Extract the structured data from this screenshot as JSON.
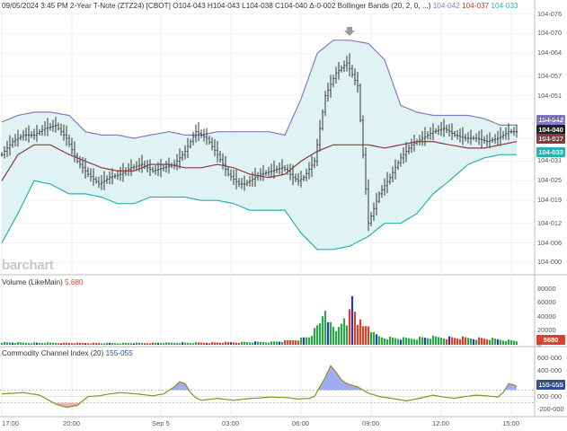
{
  "header": {
    "main_text": "09/05/2024 3:45 PM 2-Year T-Note (ZTZ24) [CBOT] O104-043 H104-043 L104-038 C104-040 Δ-0-002 Bollinger Bands (20, 2, 0, ...)",
    "bb_upper": "104-042",
    "bb_middle": "104-037",
    "bb_lower": "104-033",
    "volume_text": "Volume (LikeMain)",
    "volume_value": "5,680",
    "cci_text": "Commodity Channel Index (20)",
    "cci_value": "155-055"
  },
  "watermark": "barchart",
  "colors": {
    "bb_upper": "#8878c8",
    "bb_middle": "#8b3a3a",
    "bb_lower": "#2ab0b0",
    "bb_fill": "#dff3f3",
    "price": "#222222",
    "vol_up": "#2aa84a",
    "vol_down": "#e0402a",
    "vol_blue": "#2a3aa8",
    "cci_line": "#8f8f20",
    "cci_pos_fill": "#8e9ef0",
    "cci_neg_fill": "#f2a0a8",
    "tag_price": "#222222",
    "tag_cci": "#2a4ab0"
  },
  "marker_icon": "down-arrow-icon",
  "tags": {
    "price": "104-040",
    "cci": "155-055",
    "volume": "5680"
  },
  "chart_data": [
    {
      "type": "line",
      "title": "2-Year T-Note (ZTZ24) [CBOT] with Bollinger Bands (20, 2, 0)",
      "x_tick_labels": [
        "17:00",
        "20:00",
        "Sep 5",
        "03:00",
        "06:00",
        "09:00",
        "12:00",
        "15:00"
      ],
      "y_tick_labels": [
        "104-000",
        "104-006",
        "104-012",
        "104-019",
        "104-025",
        "104-031",
        "104-038",
        "104-044",
        "104-051",
        "104-057",
        "104-064",
        "104-070",
        "104-076"
      ],
      "y_range": [
        103.999,
        104.077
      ],
      "y_unit_note": "values in points (104-032 = 104.032)",
      "price_anchors_x_index": [
        0,
        4,
        8,
        12,
        16,
        20,
        24,
        28,
        32,
        36,
        40,
        44,
        48,
        52,
        56,
        60,
        64,
        68,
        72,
        76,
        80,
        84,
        88,
        90,
        92,
        96,
        100,
        104,
        106,
        108,
        110,
        112,
        116,
        120,
        124,
        128,
        132,
        136,
        140,
        144,
        148,
        152,
        156,
        160,
        164,
        168,
        172,
        176,
        180,
        184,
        188,
        191
      ],
      "price_anchors": [
        104.033,
        104.037,
        104.039,
        104.039,
        104.041,
        104.042,
        104.038,
        104.031,
        104.027,
        104.024,
        104.026,
        104.027,
        104.029,
        104.03,
        104.028,
        104.029,
        104.03,
        104.034,
        104.04,
        104.038,
        104.033,
        104.027,
        104.024,
        104.024,
        104.025,
        104.027,
        104.028,
        104.029,
        104.028,
        104.026,
        104.025,
        104.026,
        104.031,
        104.051,
        104.058,
        104.061,
        104.054,
        104.012,
        104.021,
        104.026,
        104.032,
        104.036,
        104.038,
        104.04,
        104.041,
        104.039,
        104.038,
        104.038,
        104.037,
        104.038,
        104.04,
        104.04
      ],
      "bb_upper_anchors": [
        104.043,
        104.045,
        104.046,
        104.046,
        104.045,
        104.04,
        104.039,
        104.039,
        104.038,
        104.039,
        104.04,
        104.039,
        104.039,
        104.04,
        104.04,
        104.04,
        104.04,
        104.039,
        104.05,
        104.064,
        104.068,
        104.068,
        104.067,
        104.062,
        104.048,
        104.046,
        104.045,
        104.045,
        104.045,
        104.044,
        104.042,
        104.042
      ],
      "bb_middle_anchors": [
        104.025,
        104.033,
        104.036,
        104.036,
        104.033,
        104.031,
        104.029,
        104.028,
        104.028,
        104.03,
        104.03,
        104.029,
        104.029,
        104.03,
        104.029,
        104.027,
        104.026,
        104.027,
        104.031,
        104.034,
        104.036,
        104.036,
        104.036,
        104.035,
        104.036,
        104.037,
        104.037,
        104.036,
        104.035,
        104.035,
        104.036,
        104.037
      ],
      "bb_lower_anchors": [
        104.006,
        104.015,
        104.025,
        104.024,
        104.021,
        104.021,
        104.02,
        104.018,
        104.018,
        104.02,
        104.02,
        104.02,
        104.019,
        104.019,
        104.018,
        104.016,
        104.016,
        104.016,
        104.009,
        104.004,
        104.004,
        104.005,
        104.008,
        104.012,
        104.012,
        104.015,
        104.021,
        104.025,
        104.03,
        104.032,
        104.033,
        104.033
      ],
      "bb_last": {
        "upper": 104.042,
        "middle": 104.037,
        "lower": 104.033
      }
    },
    {
      "type": "bar",
      "title": "Volume (LikeMain)",
      "y_tick_labels": [
        "80000",
        "60000",
        "40000",
        "20000",
        "0"
      ],
      "y_range": [
        0,
        85000
      ],
      "last_value": 5680,
      "anchors_x_index": [
        0,
        10,
        20,
        30,
        40,
        50,
        60,
        70,
        80,
        90,
        100,
        105,
        110,
        114,
        116,
        118,
        120,
        122,
        124,
        126,
        128,
        130,
        132,
        134,
        136,
        138,
        140,
        144,
        150,
        160,
        170,
        180,
        191
      ],
      "anchors": [
        3500,
        3000,
        2800,
        2600,
        2500,
        2600,
        2900,
        3000,
        3300,
        3800,
        4200,
        5500,
        8000,
        12000,
        20000,
        30000,
        58000,
        28000,
        20000,
        38000,
        25000,
        75000,
        38000,
        25000,
        30000,
        15000,
        12000,
        10000,
        9000,
        11000,
        10000,
        9000,
        5680
      ]
    },
    {
      "type": "area",
      "title": "Commodity Channel Index (20)",
      "y_tick_labels": [
        "600-000",
        "400-000",
        "200-000",
        "000-000",
        "-200-000"
      ],
      "y_range": [
        -260,
        640
      ],
      "reference_lines": [
        100,
        -100
      ],
      "last_value": 155.055,
      "anchors_x_index": [
        0,
        8,
        14,
        20,
        24,
        28,
        32,
        36,
        40,
        44,
        50,
        56,
        60,
        64,
        66,
        68,
        70,
        72,
        74,
        76,
        80,
        86,
        90,
        100,
        106,
        110,
        114,
        116,
        118,
        120,
        122,
        124,
        126,
        128,
        132,
        136,
        140,
        146,
        150,
        156,
        160,
        164,
        168,
        172,
        176,
        180,
        184,
        186,
        188,
        190,
        191
      ],
      "anchors": [
        40,
        60,
        20,
        -120,
        -170,
        -140,
        0,
        10,
        40,
        60,
        40,
        10,
        40,
        150,
        230,
        200,
        60,
        -20,
        -60,
        -50,
        -30,
        -60,
        -40,
        -10,
        -20,
        -40,
        -30,
        0,
        150,
        300,
        480,
        380,
        260,
        200,
        150,
        50,
        0,
        -40,
        -70,
        -20,
        20,
        -10,
        -30,
        0,
        20,
        10,
        -10,
        60,
        200,
        180,
        155
      ]
    }
  ]
}
